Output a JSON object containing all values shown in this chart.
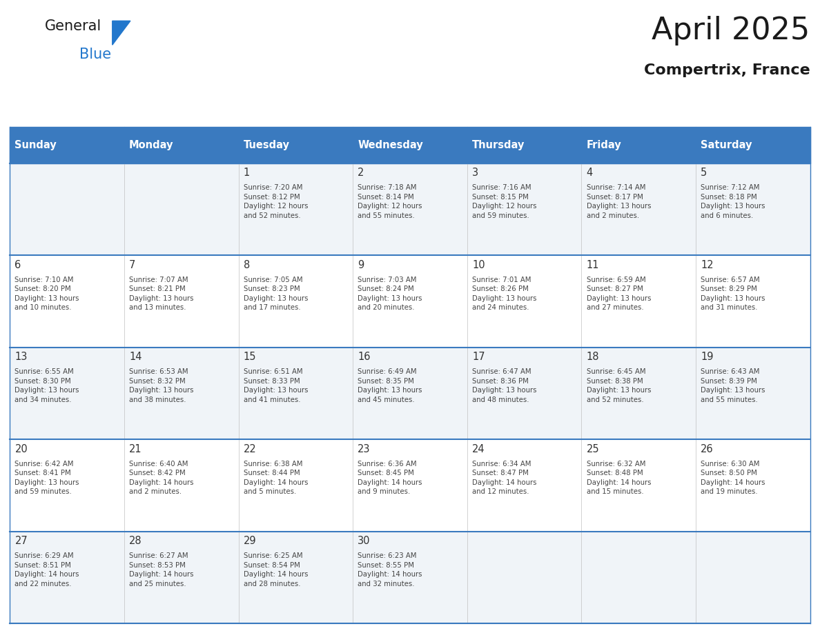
{
  "title": "April 2025",
  "subtitle": "Compertrix, France",
  "days_of_week": [
    "Sunday",
    "Monday",
    "Tuesday",
    "Wednesday",
    "Thursday",
    "Friday",
    "Saturday"
  ],
  "header_bg": "#3a7abf",
  "header_text_color": "#ffffff",
  "row_bg_odd": "#f0f4f8",
  "row_bg_even": "#ffffff",
  "text_color": "#333333",
  "day_number_color": "#333333",
  "border_color": "#3a7abf",
  "logo_color": "#2277cc",
  "logo_triangle_color": "#2277cc",
  "weeks": [
    {
      "days": [
        {
          "date": "",
          "sunrise": "",
          "sunset": "",
          "daylight": ""
        },
        {
          "date": "",
          "sunrise": "",
          "sunset": "",
          "daylight": ""
        },
        {
          "date": "1",
          "sunrise": "Sunrise: 7:20 AM",
          "sunset": "Sunset: 8:12 PM",
          "daylight": "Daylight: 12 hours\nand 52 minutes."
        },
        {
          "date": "2",
          "sunrise": "Sunrise: 7:18 AM",
          "sunset": "Sunset: 8:14 PM",
          "daylight": "Daylight: 12 hours\nand 55 minutes."
        },
        {
          "date": "3",
          "sunrise": "Sunrise: 7:16 AM",
          "sunset": "Sunset: 8:15 PM",
          "daylight": "Daylight: 12 hours\nand 59 minutes."
        },
        {
          "date": "4",
          "sunrise": "Sunrise: 7:14 AM",
          "sunset": "Sunset: 8:17 PM",
          "daylight": "Daylight: 13 hours\nand 2 minutes."
        },
        {
          "date": "5",
          "sunrise": "Sunrise: 7:12 AM",
          "sunset": "Sunset: 8:18 PM",
          "daylight": "Daylight: 13 hours\nand 6 minutes."
        }
      ]
    },
    {
      "days": [
        {
          "date": "6",
          "sunrise": "Sunrise: 7:10 AM",
          "sunset": "Sunset: 8:20 PM",
          "daylight": "Daylight: 13 hours\nand 10 minutes."
        },
        {
          "date": "7",
          "sunrise": "Sunrise: 7:07 AM",
          "sunset": "Sunset: 8:21 PM",
          "daylight": "Daylight: 13 hours\nand 13 minutes."
        },
        {
          "date": "8",
          "sunrise": "Sunrise: 7:05 AM",
          "sunset": "Sunset: 8:23 PM",
          "daylight": "Daylight: 13 hours\nand 17 minutes."
        },
        {
          "date": "9",
          "sunrise": "Sunrise: 7:03 AM",
          "sunset": "Sunset: 8:24 PM",
          "daylight": "Daylight: 13 hours\nand 20 minutes."
        },
        {
          "date": "10",
          "sunrise": "Sunrise: 7:01 AM",
          "sunset": "Sunset: 8:26 PM",
          "daylight": "Daylight: 13 hours\nand 24 minutes."
        },
        {
          "date": "11",
          "sunrise": "Sunrise: 6:59 AM",
          "sunset": "Sunset: 8:27 PM",
          "daylight": "Daylight: 13 hours\nand 27 minutes."
        },
        {
          "date": "12",
          "sunrise": "Sunrise: 6:57 AM",
          "sunset": "Sunset: 8:29 PM",
          "daylight": "Daylight: 13 hours\nand 31 minutes."
        }
      ]
    },
    {
      "days": [
        {
          "date": "13",
          "sunrise": "Sunrise: 6:55 AM",
          "sunset": "Sunset: 8:30 PM",
          "daylight": "Daylight: 13 hours\nand 34 minutes."
        },
        {
          "date": "14",
          "sunrise": "Sunrise: 6:53 AM",
          "sunset": "Sunset: 8:32 PM",
          "daylight": "Daylight: 13 hours\nand 38 minutes."
        },
        {
          "date": "15",
          "sunrise": "Sunrise: 6:51 AM",
          "sunset": "Sunset: 8:33 PM",
          "daylight": "Daylight: 13 hours\nand 41 minutes."
        },
        {
          "date": "16",
          "sunrise": "Sunrise: 6:49 AM",
          "sunset": "Sunset: 8:35 PM",
          "daylight": "Daylight: 13 hours\nand 45 minutes."
        },
        {
          "date": "17",
          "sunrise": "Sunrise: 6:47 AM",
          "sunset": "Sunset: 8:36 PM",
          "daylight": "Daylight: 13 hours\nand 48 minutes."
        },
        {
          "date": "18",
          "sunrise": "Sunrise: 6:45 AM",
          "sunset": "Sunset: 8:38 PM",
          "daylight": "Daylight: 13 hours\nand 52 minutes."
        },
        {
          "date": "19",
          "sunrise": "Sunrise: 6:43 AM",
          "sunset": "Sunset: 8:39 PM",
          "daylight": "Daylight: 13 hours\nand 55 minutes."
        }
      ]
    },
    {
      "days": [
        {
          "date": "20",
          "sunrise": "Sunrise: 6:42 AM",
          "sunset": "Sunset: 8:41 PM",
          "daylight": "Daylight: 13 hours\nand 59 minutes."
        },
        {
          "date": "21",
          "sunrise": "Sunrise: 6:40 AM",
          "sunset": "Sunset: 8:42 PM",
          "daylight": "Daylight: 14 hours\nand 2 minutes."
        },
        {
          "date": "22",
          "sunrise": "Sunrise: 6:38 AM",
          "sunset": "Sunset: 8:44 PM",
          "daylight": "Daylight: 14 hours\nand 5 minutes."
        },
        {
          "date": "23",
          "sunrise": "Sunrise: 6:36 AM",
          "sunset": "Sunset: 8:45 PM",
          "daylight": "Daylight: 14 hours\nand 9 minutes."
        },
        {
          "date": "24",
          "sunrise": "Sunrise: 6:34 AM",
          "sunset": "Sunset: 8:47 PM",
          "daylight": "Daylight: 14 hours\nand 12 minutes."
        },
        {
          "date": "25",
          "sunrise": "Sunrise: 6:32 AM",
          "sunset": "Sunset: 8:48 PM",
          "daylight": "Daylight: 14 hours\nand 15 minutes."
        },
        {
          "date": "26",
          "sunrise": "Sunrise: 6:30 AM",
          "sunset": "Sunset: 8:50 PM",
          "daylight": "Daylight: 14 hours\nand 19 minutes."
        }
      ]
    },
    {
      "days": [
        {
          "date": "27",
          "sunrise": "Sunrise: 6:29 AM",
          "sunset": "Sunset: 8:51 PM",
          "daylight": "Daylight: 14 hours\nand 22 minutes."
        },
        {
          "date": "28",
          "sunrise": "Sunrise: 6:27 AM",
          "sunset": "Sunset: 8:53 PM",
          "daylight": "Daylight: 14 hours\nand 25 minutes."
        },
        {
          "date": "29",
          "sunrise": "Sunrise: 6:25 AM",
          "sunset": "Sunset: 8:54 PM",
          "daylight": "Daylight: 14 hours\nand 28 minutes."
        },
        {
          "date": "30",
          "sunrise": "Sunrise: 6:23 AM",
          "sunset": "Sunset: 8:55 PM",
          "daylight": "Daylight: 14 hours\nand 32 minutes."
        },
        {
          "date": "",
          "sunrise": "",
          "sunset": "",
          "daylight": ""
        },
        {
          "date": "",
          "sunrise": "",
          "sunset": "",
          "daylight": ""
        },
        {
          "date": "",
          "sunrise": "",
          "sunset": "",
          "daylight": ""
        }
      ]
    }
  ]
}
